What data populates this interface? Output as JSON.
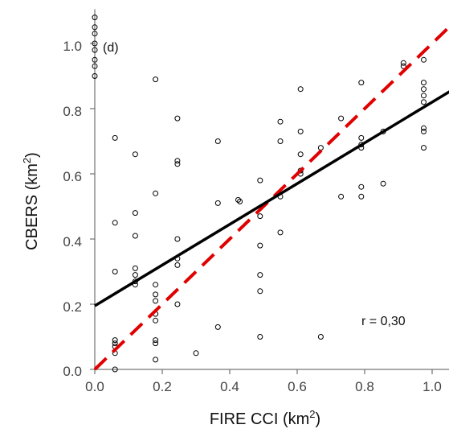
{
  "chart_data": {
    "type": "scatter",
    "panel_label": "(d)",
    "xlabel": "FIRE CCI (km",
    "xlabel_sup": "2",
    "xlabel_end": ")",
    "ylabel": "CBERS (km",
    "ylabel_sup": "2",
    "ylabel_end": ")",
    "annotation": "r = 0,30",
    "xlim": [
      0,
      1.08
    ],
    "ylim": [
      0,
      1.1
    ],
    "xticks": [
      0.0,
      0.2,
      0.4,
      0.6,
      0.8,
      1.0
    ],
    "xtick_labels": [
      "0.0",
      "0.2",
      "0.4",
      "0.6",
      "0.8",
      "1.0"
    ],
    "yticks": [
      0.0,
      0.2,
      0.4,
      0.6,
      0.8,
      1.0
    ],
    "ytick_labels": [
      "0.0",
      "0.2",
      "0.4",
      "0.6",
      "0.8",
      "1.0"
    ],
    "grid": false,
    "colors": {
      "points": "#000000",
      "fit_line": "#000000",
      "identity_line": "#e00000",
      "axis": "#555555"
    },
    "fit_line": {
      "intercept": 0.195,
      "slope": 0.625
    },
    "identity_line": {
      "intercept": 0.0,
      "slope": 1.0
    },
    "points": [
      [
        0.0,
        1.08
      ],
      [
        0.0,
        1.05
      ],
      [
        0.0,
        1.03
      ],
      [
        0.0,
        1.0
      ],
      [
        0.0,
        0.98
      ],
      [
        0.0,
        0.95
      ],
      [
        0.0,
        0.93
      ],
      [
        0.0,
        0.9
      ],
      [
        0.06,
        0.71
      ],
      [
        0.06,
        0.45
      ],
      [
        0.06,
        0.3
      ],
      [
        0.06,
        0.09
      ],
      [
        0.06,
        0.08
      ],
      [
        0.06,
        0.07
      ],
      [
        0.06,
        0.05
      ],
      [
        0.06,
        0.0
      ],
      [
        0.12,
        0.66
      ],
      [
        0.12,
        0.48
      ],
      [
        0.12,
        0.41
      ],
      [
        0.12,
        0.31
      ],
      [
        0.12,
        0.29
      ],
      [
        0.12,
        0.27
      ],
      [
        0.12,
        0.26
      ],
      [
        0.18,
        0.89
      ],
      [
        0.18,
        0.54
      ],
      [
        0.18,
        0.26
      ],
      [
        0.18,
        0.23
      ],
      [
        0.18,
        0.21
      ],
      [
        0.18,
        0.17
      ],
      [
        0.18,
        0.15
      ],
      [
        0.18,
        0.09
      ],
      [
        0.18,
        0.08
      ],
      [
        0.18,
        0.03
      ],
      [
        0.245,
        0.77
      ],
      [
        0.245,
        0.64
      ],
      [
        0.245,
        0.63
      ],
      [
        0.245,
        0.4
      ],
      [
        0.245,
        0.34
      ],
      [
        0.245,
        0.32
      ],
      [
        0.245,
        0.2
      ],
      [
        0.3,
        0.05
      ],
      [
        0.365,
        0.7
      ],
      [
        0.365,
        0.51
      ],
      [
        0.365,
        0.13
      ],
      [
        0.425,
        0.52
      ],
      [
        0.43,
        0.515
      ],
      [
        0.49,
        0.58
      ],
      [
        0.49,
        0.47
      ],
      [
        0.49,
        0.38
      ],
      [
        0.49,
        0.29
      ],
      [
        0.49,
        0.24
      ],
      [
        0.49,
        0.1
      ],
      [
        0.55,
        0.76
      ],
      [
        0.55,
        0.7
      ],
      [
        0.55,
        0.53
      ],
      [
        0.55,
        0.42
      ],
      [
        0.61,
        0.86
      ],
      [
        0.61,
        0.73
      ],
      [
        0.61,
        0.66
      ],
      [
        0.61,
        0.61
      ],
      [
        0.61,
        0.6
      ],
      [
        0.67,
        0.68
      ],
      [
        0.67,
        0.1
      ],
      [
        0.73,
        0.77
      ],
      [
        0.73,
        0.53
      ],
      [
        0.79,
        0.88
      ],
      [
        0.79,
        0.71
      ],
      [
        0.79,
        0.69
      ],
      [
        0.79,
        0.68
      ],
      [
        0.79,
        0.56
      ],
      [
        0.79,
        0.53
      ],
      [
        0.855,
        0.73
      ],
      [
        0.855,
        0.57
      ],
      [
        0.915,
        0.94
      ],
      [
        0.915,
        0.93
      ],
      [
        0.975,
        0.95
      ],
      [
        0.975,
        0.88
      ],
      [
        0.975,
        0.86
      ],
      [
        0.975,
        0.84
      ],
      [
        0.975,
        0.82
      ],
      [
        0.975,
        0.74
      ],
      [
        0.975,
        0.73
      ],
      [
        0.975,
        0.68
      ]
    ]
  }
}
